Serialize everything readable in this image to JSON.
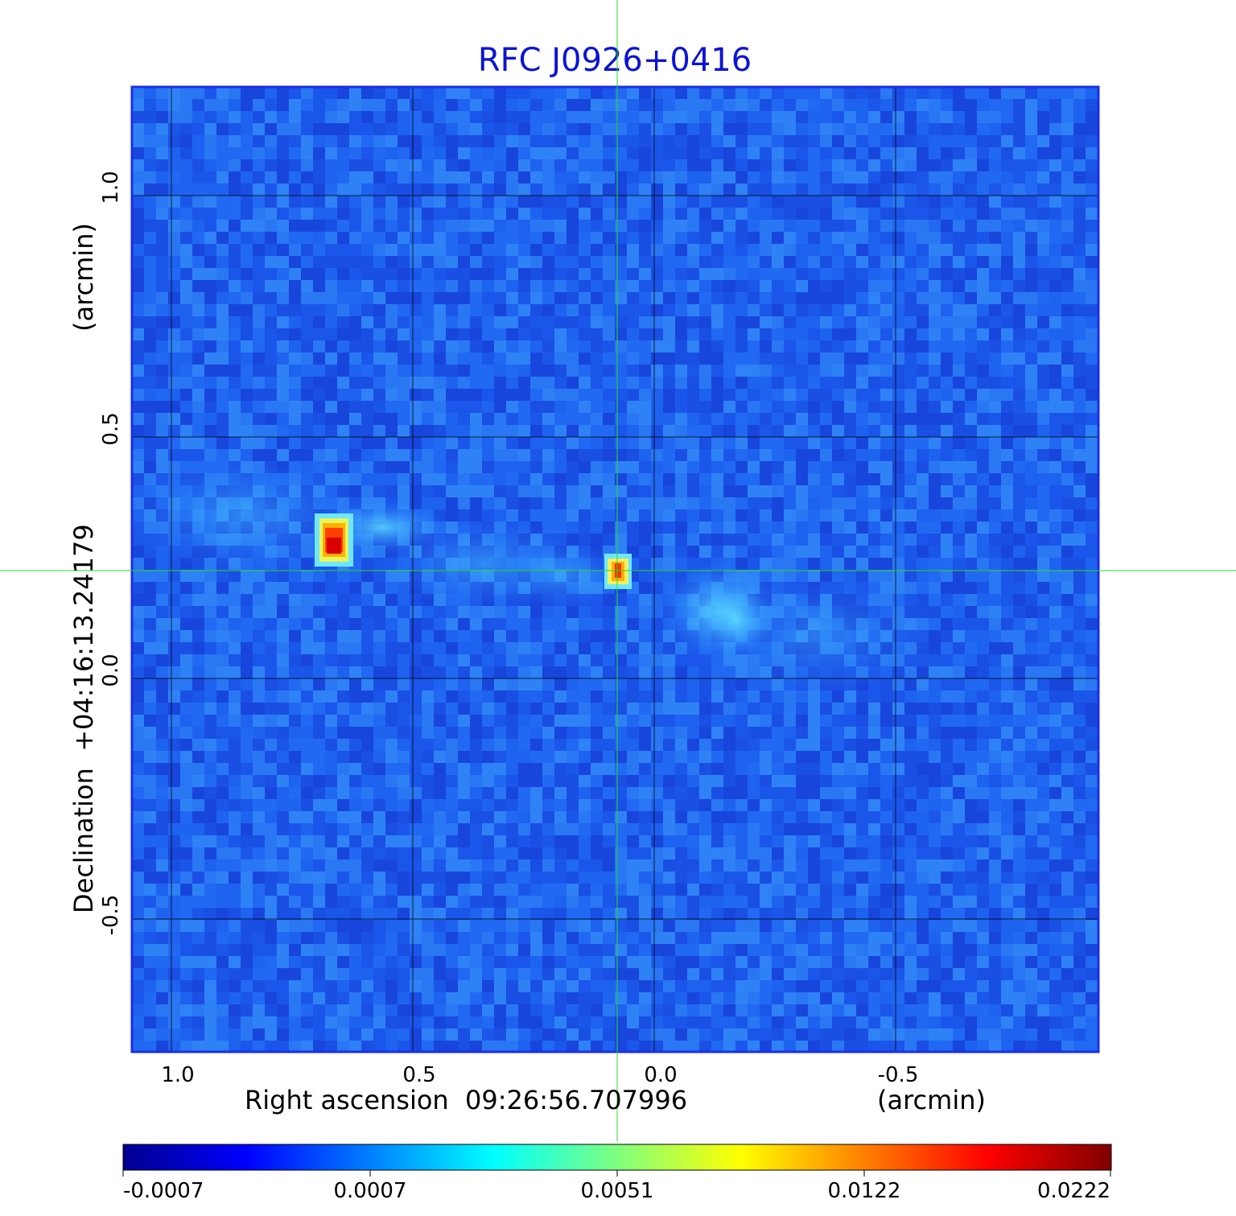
{
  "title": "RFC J0926+0416",
  "x_axis": {
    "label": "Right ascension  09:26:56.707996",
    "unit": "(arcmin)",
    "ticks": [
      "1.0",
      "0.5",
      "0.0",
      "-0.5"
    ],
    "tick_values": [
      1.0,
      0.5,
      0.0,
      -0.5
    ],
    "range": [
      1.08,
      -0.92
    ]
  },
  "y_axis": {
    "label": "Declination  +04:16:13.24179",
    "unit": "(arcmin)",
    "ticks": [
      "1.0",
      "0.5",
      "0.0",
      "-0.5"
    ],
    "tick_values": [
      1.0,
      0.5,
      0.0,
      -0.5
    ],
    "range": [
      -0.775,
      1.225
    ]
  },
  "colorbar": {
    "ticks": [
      "-0.0007",
      "0.0007",
      "0.0051",
      "0.0122",
      "0.0222"
    ],
    "colormap": "jet"
  },
  "colors": {
    "title": "#0b14d4",
    "crosshair": "#22dd22",
    "grid": "#000000",
    "frame": "#1a2fe6",
    "background_field": "#1e62f0"
  },
  "features": {
    "crosshair": true,
    "grid": true,
    "bright_sources": 2,
    "extended_emission": true
  }
}
